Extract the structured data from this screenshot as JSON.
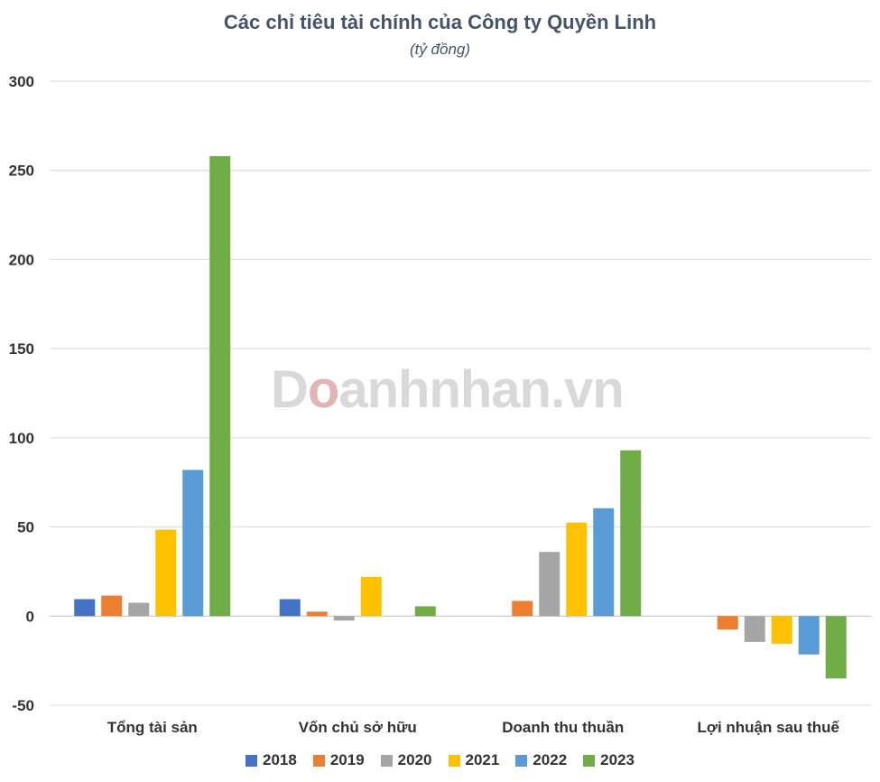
{
  "chart_data": {
    "type": "bar",
    "title": "Các chỉ tiêu tài chính của Công ty Quyền Linh",
    "subtitle": "(tỷ đồng)",
    "categories": [
      "Tổng tài sản",
      "Vốn chủ sở hữu",
      "Doanh thu thuần",
      "Lợi nhuận sau thuế"
    ],
    "series": [
      {
        "name": "2018",
        "color": "#4472c4",
        "values": [
          9.5,
          9.5,
          null,
          null
        ]
      },
      {
        "name": "2019",
        "color": "#ed7d31",
        "values": [
          11.5,
          2.5,
          8.5,
          -7.5
        ]
      },
      {
        "name": "2020",
        "color": "#a5a5a5",
        "values": [
          7.5,
          -2.5,
          36,
          -14.5
        ]
      },
      {
        "name": "2021",
        "color": "#ffc000",
        "values": [
          48.5,
          22,
          52.5,
          -15.5
        ]
      },
      {
        "name": "2022",
        "color": "#5b9bd5",
        "values": [
          82,
          null,
          60.5,
          -21.5
        ]
      },
      {
        "name": "2023",
        "color": "#70ad47",
        "values": [
          258,
          5.5,
          93,
          -35
        ]
      }
    ],
    "ylim": [
      -50,
      300
    ],
    "yticks": [
      "300",
      "250",
      "200",
      "150",
      "100",
      "50",
      "0",
      "-50"
    ],
    "grid": true,
    "legend": "bottom"
  },
  "watermark": {
    "text_start": "D",
    "text_mark": "o",
    "text_end": "anhnhan.vn"
  }
}
